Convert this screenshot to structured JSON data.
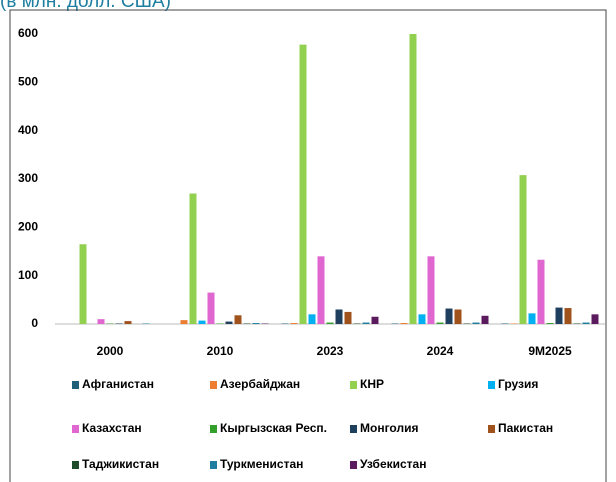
{
  "chart_data": {
    "type": "bar",
    "subtitle": "(в млн. долл. США)",
    "categories": [
      "2000",
      "2010",
      "2023",
      "2024",
      "9M2025"
    ],
    "series": [
      {
        "name": "Афганистан",
        "color": "#1f5f7a",
        "values": [
          0,
          0,
          1,
          1,
          1
        ]
      },
      {
        "name": "Азербайджан",
        "color": "#ed7d31",
        "values": [
          0,
          8,
          2,
          2,
          1
        ]
      },
      {
        "name": "КНР",
        "color": "#92d050",
        "values": [
          165,
          270,
          578,
          600,
          308
        ]
      },
      {
        "name": "Грузия",
        "color": "#00b0f0",
        "values": [
          0,
          7,
          20,
          20,
          22
        ]
      },
      {
        "name": "Казахстан",
        "color": "#e066d0",
        "values": [
          10,
          65,
          140,
          140,
          133
        ]
      },
      {
        "name": "Кыргызская Респ.",
        "color": "#33a02c",
        "values": [
          1,
          1,
          3,
          3,
          2
        ]
      },
      {
        "name": "Монголия",
        "color": "#1f3f5f",
        "values": [
          1,
          5,
          30,
          32,
          34
        ]
      },
      {
        "name": "Пакистан",
        "color": "#a0521d",
        "values": [
          6,
          18,
          25,
          30,
          33
        ]
      },
      {
        "name": "Таджикистан",
        "color": "#1e4d2b",
        "values": [
          0,
          1,
          1,
          1,
          1
        ]
      },
      {
        "name": "Туркменистан",
        "color": "#1f7ea0",
        "values": [
          1,
          2,
          3,
          3,
          3
        ]
      },
      {
        "name": "Узбекистан",
        "color": "#5b1a5e",
        "values": [
          0,
          1,
          15,
          17,
          20
        ]
      }
    ],
    "ylim": [
      0,
      600
    ],
    "yticks": [
      0,
      100,
      200,
      300,
      400,
      500,
      600
    ],
    "grid": false
  }
}
